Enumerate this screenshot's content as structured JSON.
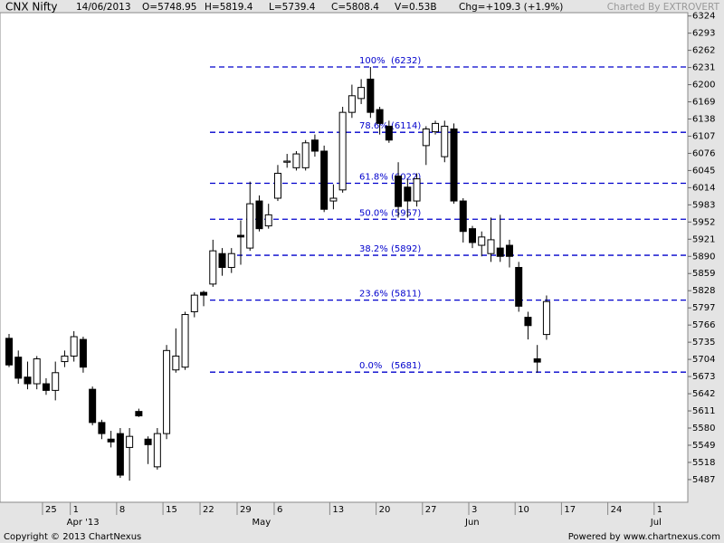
{
  "chart_data": {
    "type": "candlestick",
    "title": "CNX Nifty",
    "info": [
      "14/06/2013",
      "O=5748.95",
      "H=5819.4",
      "L=5739.4",
      "C=5808.4",
      "V=0.53B",
      "Chg=+109.3 (+1.9%)"
    ],
    "credit": "Charted By EXTROVERT",
    "footer": [
      "Copyright © 2013 ChartNexus",
      "Powered by www.chartnexus.com"
    ],
    "categories": [
      null,
      null,
      null,
      null,
      "25",
      null,
      null,
      "1",
      null,
      null,
      null,
      null,
      "8",
      null,
      null,
      null,
      null,
      "15",
      null,
      null,
      null,
      "22",
      null,
      null,
      null,
      "29",
      null,
      null,
      null,
      "6",
      null,
      null,
      null,
      null,
      null,
      "13",
      null,
      null,
      null,
      null,
      "20",
      null,
      null,
      null,
      null,
      "27",
      null,
      null,
      null,
      null,
      "3",
      null,
      null,
      null,
      null,
      "10",
      null,
      null,
      null,
      null,
      "17",
      null,
      null,
      null,
      null,
      "24",
      null,
      null,
      null,
      null,
      "1",
      null,
      null,
      null
    ],
    "months": [
      null,
      null,
      null,
      null,
      null,
      null,
      null,
      "Apr '13",
      null,
      null,
      null,
      null,
      null,
      null,
      null,
      null,
      null,
      null,
      null,
      null,
      null,
      null,
      null,
      null,
      null,
      null,
      null,
      "May",
      null,
      null,
      null,
      null,
      null,
      null,
      null,
      null,
      null,
      null,
      null,
      null,
      null,
      null,
      null,
      null,
      null,
      null,
      null,
      null,
      null,
      null,
      "Jun",
      null,
      null,
      null,
      null,
      null,
      null,
      null,
      null,
      null,
      null,
      null,
      null,
      null,
      null,
      null,
      null,
      null,
      null,
      null,
      "Jul",
      null,
      null,
      null
    ],
    "open": [
      5742,
      5708,
      5672,
      5660,
      5660,
      5648,
      5700,
      5710,
      5740,
      5650,
      5590,
      5560,
      5570,
      5545,
      5610,
      5560,
      5510,
      5570,
      5685,
      5690,
      5790,
      5825,
      5840,
      5895,
      5870,
      5928,
      5905,
      5990,
      5945,
      5995,
      6060,
      6050,
      6050,
      6100,
      6080,
      5990,
      6010,
      6150,
      6175,
      6210,
      6155,
      6125,
      6035,
      6015,
      5990,
      6090,
      6115,
      6070,
      6120,
      5990,
      5940,
      5910,
      5895,
      5905,
      5910,
      5870,
      5780,
      5705,
      5748.95,
      null,
      null,
      null,
      null,
      null,
      null,
      null,
      null,
      null,
      null,
      null,
      null,
      null,
      null,
      null
    ],
    "high": [
      5750,
      5720,
      5700,
      5710,
      5670,
      5700,
      5720,
      5755,
      5745,
      5655,
      5595,
      5575,
      5580,
      5580,
      5615,
      5565,
      5580,
      5730,
      5760,
      5790,
      5825,
      5828,
      5920,
      5905,
      5905,
      5955,
      6025,
      6000,
      5985,
      6055,
      6075,
      6080,
      6100,
      6110,
      6090,
      6020,
      6160,
      6200,
      6210,
      6232,
      6160,
      6135,
      6060,
      6030,
      6040,
      6125,
      6135,
      6135,
      6130,
      5995,
      5945,
      5935,
      5960,
      5965,
      5920,
      5880,
      5790,
      5730,
      5819.4,
      null,
      null,
      null,
      null,
      null,
      null,
      null,
      null,
      null,
      null,
      null,
      null,
      null,
      null,
      null
    ],
    "low": [
      5690,
      5660,
      5650,
      5650,
      5640,
      5630,
      5690,
      5700,
      5680,
      5585,
      5560,
      5545,
      5490,
      5485,
      5600,
      5515,
      5505,
      5560,
      5680,
      5685,
      5780,
      5800,
      5835,
      5855,
      5860,
      5875,
      5900,
      5935,
      5940,
      5990,
      6050,
      6045,
      6045,
      6070,
      5970,
      5975,
      6005,
      6140,
      6165,
      6140,
      6110,
      6095,
      5960,
      5960,
      5980,
      6055,
      6110,
      6060,
      5985,
      5915,
      5905,
      5890,
      5880,
      5880,
      5870,
      5790,
      5740,
      5680,
      5739.4,
      null,
      null,
      null,
      null,
      null,
      null,
      null,
      null,
      null,
      null,
      null,
      null,
      null,
      null,
      null
    ],
    "close": [
      5694,
      5670,
      5660,
      5705,
      5648,
      5680,
      5710,
      5745,
      5690,
      5590,
      5570,
      5555,
      5495,
      5565,
      5602,
      5550,
      5570,
      5720,
      5710,
      5785,
      5820,
      5820,
      5900,
      5870,
      5895,
      5925,
      5985,
      5940,
      5965,
      6040,
      6062,
      6075,
      6095,
      6080,
      5975,
      5995,
      6150,
      6180,
      6195,
      6150,
      6130,
      6100,
      5980,
      5990,
      6030,
      6120,
      6130,
      6125,
      5990,
      5935,
      5915,
      5925,
      5920,
      5890,
      5890,
      5800,
      5765,
      5699.1,
      5808.4,
      null,
      null,
      null,
      null,
      null,
      null,
      null,
      null,
      null,
      null,
      null,
      null,
      null,
      null,
      null
    ],
    "up_color": "#ffffff",
    "down_color": "#000000",
    "fib_color": "#0000cc",
    "fib_levels": [
      {
        "label": "100%",
        "value": 6232,
        "value_label": "(6232)"
      },
      {
        "label": "78.6%",
        "value": 6114,
        "value_label": "(6114)"
      },
      {
        "label": "61.8%",
        "value": 6022,
        "value_label": "(6022)"
      },
      {
        "label": "50.0%",
        "value": 5957,
        "value_label": "(5957)"
      },
      {
        "label": "38.2%",
        "value": 5892,
        "value_label": "(5892)"
      },
      {
        "label": "23.6%",
        "value": 5811,
        "value_label": "(5811)"
      },
      {
        "label": "0.0%",
        "value": 5681,
        "value_label": "(5681)"
      }
    ],
    "ylim": [
      5446,
      6330
    ],
    "yticks": [
      5487,
      5518,
      5549,
      5580,
      5611,
      5642,
      5673,
      5704,
      5735,
      5766,
      5797,
      5828,
      5859,
      5890,
      5921,
      5952,
      5983,
      6014,
      6045,
      6076,
      6107,
      6138,
      6169,
      6200,
      6231,
      6262,
      6293,
      6324
    ],
    "grid": false
  }
}
